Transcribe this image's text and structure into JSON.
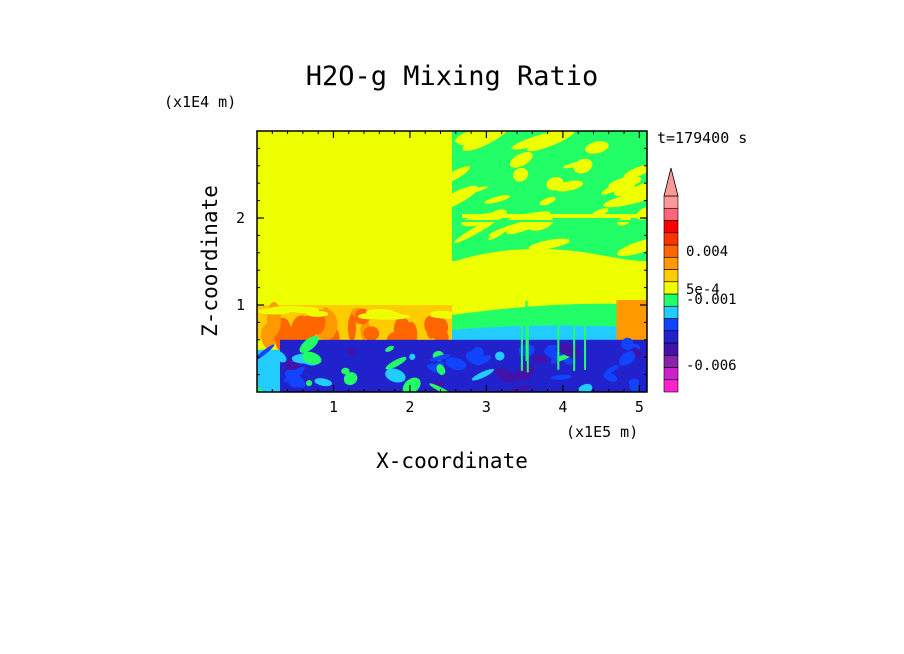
{
  "chart_data": {
    "type": "heatmap",
    "title": "H2O-g Mixing Ratio",
    "xlabel": "X-coordinate",
    "ylabel": "Z-coordinate",
    "x_scale_label": "(x1E5 m)",
    "y_scale_label": "(x1E4 m)",
    "time_label": "t=179400 s",
    "xlim": [
      0,
      5.1
    ],
    "ylim": [
      0,
      3.0
    ],
    "x_ticks": [
      1,
      2,
      3,
      4,
      5
    ],
    "y_ticks": [
      1,
      2
    ],
    "colorbar": {
      "levels": [
        "#ff22cc",
        "#cc22cc",
        "#8822aa",
        "#4411aa",
        "#2222cc",
        "#1144ff",
        "#22ccff",
        "#22ff66",
        "#eeff00",
        "#ffcc00",
        "#ff9900",
        "#ff6600",
        "#ff3300",
        "#ff0000",
        "#ff6677",
        "#ff9999"
      ],
      "labels": [
        {
          "text": "0.004",
          "level": 11.5
        },
        {
          "text": "5e-4",
          "level": 8.4
        },
        {
          "text": "-0.001",
          "level": 7.6
        },
        {
          "text": "-0.006",
          "level": 2.2
        }
      ],
      "extend": "max"
    },
    "regions": {
      "upper_left_value_color": "#eeff00",
      "upper_right_value_color": "#22ff66",
      "boundary_layer_top_km": 0.6,
      "split_x": 2.55
    }
  }
}
